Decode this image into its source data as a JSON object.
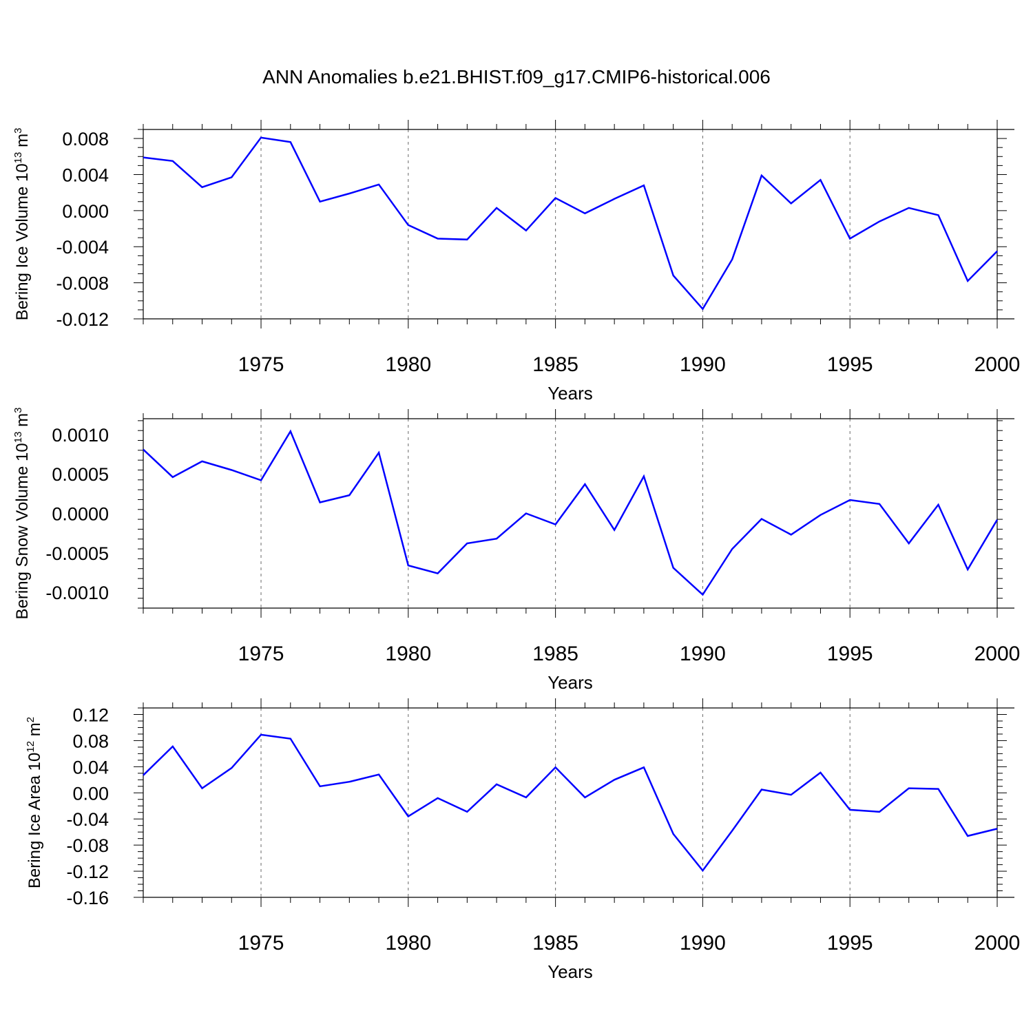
{
  "title": "ANN Anomalies b.e21.BHIST.f09_g17.CMIP6-historical.006",
  "line_color": "#0000ff",
  "chart_data": [
    {
      "type": "line",
      "ylabel": {
        "main": "Bering Ice Volume 10",
        "sup": "13",
        "mid": " m",
        "sup2": "3"
      },
      "xlabel": "Years",
      "xlim": [
        1971,
        2000
      ],
      "ylim": [
        -0.012,
        0.009
      ],
      "yticks": [
        -0.012,
        -0.008,
        -0.004,
        0.0,
        0.004,
        0.008
      ],
      "ytick_labels": [
        "-0.012",
        "-0.008",
        "-0.004",
        "0.000",
        "0.004",
        "0.008"
      ],
      "xticks": [
        1975,
        1980,
        1985,
        1990,
        1995,
        2000
      ],
      "xtick_labels": [
        "1975",
        "1980",
        "1985",
        "1990",
        "1995",
        "2000"
      ],
      "grid": "dashed vertical at labeled years",
      "x": [
        1971,
        1972,
        1973,
        1974,
        1975,
        1976,
        1977,
        1978,
        1979,
        1980,
        1981,
        1982,
        1983,
        1984,
        1985,
        1986,
        1987,
        1988,
        1989,
        1990,
        1991,
        1992,
        1993,
        1994,
        1995,
        1996,
        1997,
        1998,
        1999,
        2000
      ],
      "y": [
        0.0059,
        0.0055,
        0.0026,
        0.0037,
        0.0081,
        0.0076,
        0.001,
        0.0019,
        0.0029,
        -0.0016,
        -0.0031,
        -0.0032,
        0.0003,
        -0.0022,
        0.0014,
        -0.0003,
        0.0013,
        0.0028,
        -0.0072,
        -0.0109,
        -0.0054,
        0.0039,
        0.0008,
        0.0034,
        -0.0031,
        -0.0012,
        0.0003,
        -0.0005,
        -0.0078,
        -0.0045
      ]
    },
    {
      "type": "line",
      "ylabel": {
        "main": "Bering Snow Volume 10",
        "sup": "13",
        "mid": " m",
        "sup2": "3"
      },
      "xlabel": "Years",
      "xlim": [
        1971,
        2000
      ],
      "ylim": [
        -0.0012,
        0.0012
      ],
      "yticks": [
        -0.001,
        -0.0005,
        0.0,
        0.0005,
        0.001
      ],
      "ytick_labels": [
        "-0.0010",
        "-0.0005",
        "0.0000",
        "0.0005",
        "0.0010"
      ],
      "xticks": [
        1975,
        1980,
        1985,
        1990,
        1995,
        2000
      ],
      "xtick_labels": [
        "1975",
        "1980",
        "1985",
        "1990",
        "1995",
        "2000"
      ],
      "grid": "dashed vertical at labeled years",
      "x": [
        1971,
        1972,
        1973,
        1974,
        1975,
        1976,
        1977,
        1978,
        1979,
        1980,
        1981,
        1982,
        1983,
        1984,
        1985,
        1986,
        1987,
        1988,
        1989,
        1990,
        1991,
        1992,
        1993,
        1994,
        1995,
        1996,
        1997,
        1998,
        1999,
        2000
      ],
      "y": [
        0.00081,
        0.00046,
        0.00066,
        0.00055,
        0.00042,
        0.00104,
        0.00014,
        0.00023,
        0.00077,
        -0.00066,
        -0.00076,
        -0.00038,
        -0.00032,
        0.0,
        -0.00014,
        0.00037,
        -0.00021,
        0.00047,
        -0.00069,
        -0.00103,
        -0.00045,
        -7e-05,
        -0.00027,
        -2e-05,
        0.00017,
        0.00012,
        -0.00038,
        0.00011,
        -0.00071,
        -8e-05
      ]
    },
    {
      "type": "line",
      "ylabel": {
        "main": "Bering Ice Area 10",
        "sup": "12",
        "mid": " m",
        "sup2": "2"
      },
      "xlabel": "Years",
      "xlim": [
        1971,
        2000
      ],
      "ylim": [
        -0.16,
        0.13
      ],
      "yticks": [
        -0.16,
        -0.12,
        -0.08,
        -0.04,
        0.0,
        0.04,
        0.08,
        0.12
      ],
      "ytick_labels": [
        "-0.16",
        "-0.12",
        "-0.08",
        "-0.04",
        "0.00",
        "0.04",
        "0.08",
        "0.12"
      ],
      "xticks": [
        1975,
        1980,
        1985,
        1990,
        1995,
        2000
      ],
      "xtick_labels": [
        "1975",
        "1980",
        "1985",
        "1990",
        "1995",
        "2000"
      ],
      "grid": "dashed vertical at labeled years",
      "x": [
        1971,
        1972,
        1973,
        1974,
        1975,
        1976,
        1977,
        1978,
        1979,
        1980,
        1981,
        1982,
        1983,
        1984,
        1985,
        1986,
        1987,
        1988,
        1989,
        1990,
        1991,
        1992,
        1993,
        1994,
        1995,
        1996,
        1997,
        1998,
        1999,
        2000
      ],
      "y": [
        0.027,
        0.071,
        0.007,
        0.038,
        0.089,
        0.083,
        0.01,
        0.017,
        0.028,
        -0.036,
        -0.008,
        -0.029,
        0.013,
        -0.007,
        0.039,
        -0.007,
        0.02,
        0.039,
        -0.063,
        -0.119,
        -0.058,
        0.005,
        -0.003,
        0.031,
        -0.026,
        -0.029,
        0.007,
        0.006,
        -0.066,
        -0.055
      ]
    }
  ]
}
